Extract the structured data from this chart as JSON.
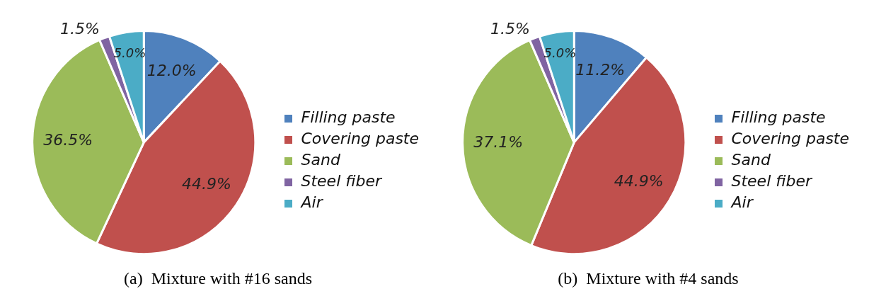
{
  "chart_data": [
    {
      "type": "pie",
      "title": "(a)  Mixture with #16 sands",
      "categories": [
        "Filling paste",
        "Covering paste",
        "Sand",
        "Steel fiber",
        "Air"
      ],
      "values": [
        12.0,
        44.9,
        36.5,
        1.5,
        5.0
      ],
      "colors": [
        "#4f81bd",
        "#c0504d",
        "#9bbb59",
        "#8064a2",
        "#4bacc6"
      ],
      "value_labels": [
        "12.0%",
        "44.9%",
        "36.5%",
        "1.5%",
        "5.0%"
      ],
      "legend": "right"
    },
    {
      "type": "pie",
      "title": "(b)  Mixture with #4 sands",
      "categories": [
        "Filling paste",
        "Covering paste",
        "Sand",
        "Steel fiber",
        "Air"
      ],
      "values": [
        11.2,
        44.9,
        37.1,
        1.5,
        5.0
      ],
      "colors": [
        "#4f81bd",
        "#c0504d",
        "#9bbb59",
        "#8064a2",
        "#4bacc6"
      ],
      "value_labels": [
        "11.2%",
        "44.9%",
        "37.1%",
        "1.5%",
        "5.0%"
      ],
      "legend": "right"
    }
  ]
}
